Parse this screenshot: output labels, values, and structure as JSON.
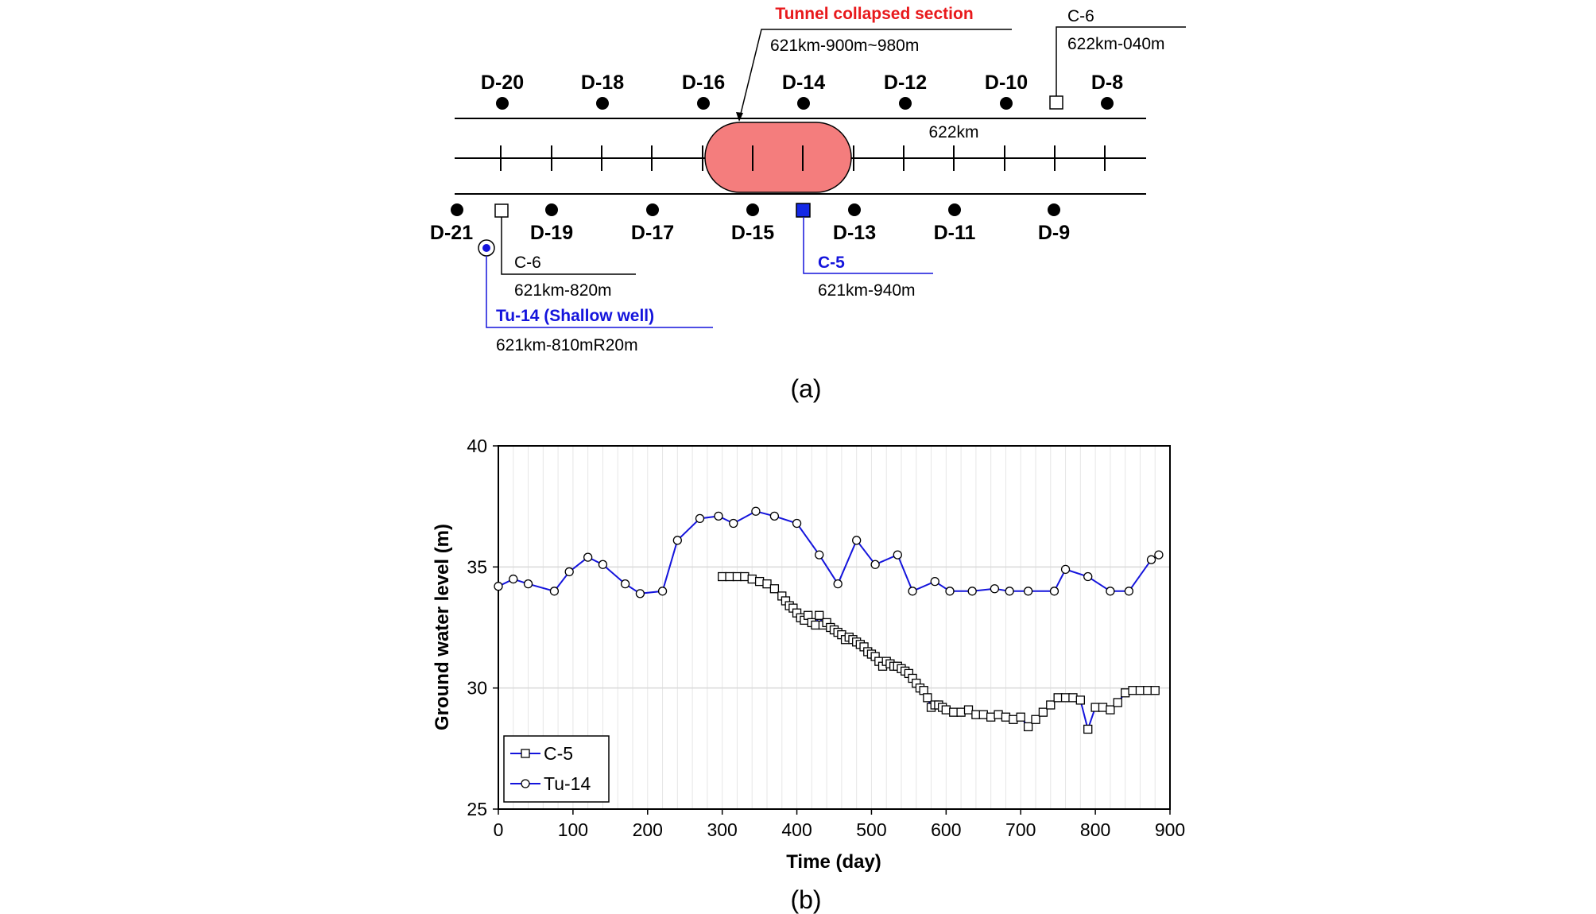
{
  "diagram": {
    "collapse_title": "Tunnel collapsed section",
    "collapse_range": "621km-900m~980m",
    "km_label": "622km",
    "top_wells": [
      "D-20",
      "D-18",
      "D-16",
      "D-14",
      "D-12",
      "D-10",
      "D-8"
    ],
    "bottom_wells": [
      "D-21",
      "D-19",
      "D-17",
      "D-15",
      "D-13",
      "D-11",
      "D-9"
    ],
    "c6_top": {
      "name": "C-6",
      "location": "622km-040m"
    },
    "c6_bottom": {
      "name": "C-6",
      "location": "621km-820m"
    },
    "c5": {
      "name": "C-5",
      "location": "621km-940m"
    },
    "tu14": {
      "name": "Tu-14 (Shallow well)",
      "location": "621km-810mR20m"
    },
    "caption": "(a)",
    "colors": {
      "collapse_fill": "#f47d7d",
      "title_red": "#e8191c",
      "blue": "#1414dc",
      "c5_fill": "#1428e6"
    }
  },
  "chart_data": {
    "type": "line",
    "caption": "(b)",
    "xlabel": "Time (day)",
    "ylabel": "Ground water level (m)",
    "xlim": [
      0,
      900
    ],
    "ylim": [
      25,
      40
    ],
    "xticks": [
      "0",
      "100",
      "200",
      "300",
      "400",
      "500",
      "600",
      "700",
      "800",
      "900"
    ],
    "yticks": [
      "25",
      "30",
      "35",
      "40"
    ],
    "grid": "vertical every 20 days; horizontal at 30 and 35",
    "legend_position": "bottom-left",
    "line_color": "#1414dc",
    "series": [
      {
        "name": "C-5",
        "marker": "square",
        "x": [
          300,
          310,
          320,
          330,
          340,
          350,
          360,
          370,
          380,
          385,
          390,
          395,
          400,
          405,
          410,
          415,
          420,
          425,
          430,
          435,
          440,
          445,
          450,
          455,
          460,
          465,
          470,
          475,
          480,
          485,
          490,
          495,
          500,
          505,
          510,
          515,
          520,
          525,
          530,
          535,
          540,
          545,
          550,
          555,
          560,
          565,
          570,
          575,
          580,
          585,
          590,
          595,
          600,
          610,
          620,
          630,
          640,
          650,
          660,
          670,
          680,
          690,
          700,
          710,
          720,
          730,
          740,
          750,
          760,
          770,
          780,
          790,
          800,
          810,
          820,
          830,
          840,
          850,
          860,
          870,
          880
        ],
        "y": [
          34.6,
          34.6,
          34.6,
          34.6,
          34.5,
          34.4,
          34.3,
          34.1,
          33.8,
          33.6,
          33.4,
          33.3,
          33.1,
          32.9,
          32.8,
          33.0,
          32.7,
          32.6,
          33.0,
          32.6,
          32.7,
          32.5,
          32.4,
          32.3,
          32.2,
          32.0,
          32.1,
          32.0,
          31.9,
          31.8,
          31.7,
          31.5,
          31.4,
          31.3,
          31.1,
          30.9,
          31.1,
          31.0,
          30.9,
          30.9,
          30.8,
          30.7,
          30.6,
          30.4,
          30.2,
          30.0,
          29.9,
          29.6,
          29.2,
          29.3,
          29.3,
          29.2,
          29.1,
          29.0,
          29.0,
          29.1,
          28.9,
          28.9,
          28.8,
          28.9,
          28.8,
          28.7,
          28.8,
          28.4,
          28.7,
          29.0,
          29.3,
          29.6,
          29.6,
          29.6,
          29.5,
          28.3,
          29.2,
          29.2,
          29.1,
          29.4,
          29.8,
          29.9,
          29.9,
          29.9,
          29.9
        ]
      },
      {
        "name": "Tu-14",
        "marker": "circle",
        "x": [
          0,
          20,
          40,
          75,
          95,
          120,
          140,
          170,
          190,
          220,
          240,
          270,
          295,
          315,
          345,
          370,
          400,
          430,
          455,
          480,
          505,
          535,
          555,
          585,
          605,
          635,
          665,
          685,
          710,
          745,
          760,
          790,
          820,
          845,
          875,
          885
        ],
        "y": [
          34.2,
          34.5,
          34.3,
          34.0,
          34.8,
          35.4,
          35.1,
          34.3,
          33.9,
          34.0,
          36.1,
          37.0,
          37.1,
          36.8,
          37.3,
          37.1,
          36.8,
          35.5,
          34.3,
          36.1,
          35.1,
          35.5,
          34.0,
          34.4,
          34.0,
          34.0,
          34.1,
          34.0,
          34.0,
          34.0,
          34.9,
          34.6,
          34.0,
          34.0,
          35.3,
          35.5
        ]
      }
    ]
  }
}
